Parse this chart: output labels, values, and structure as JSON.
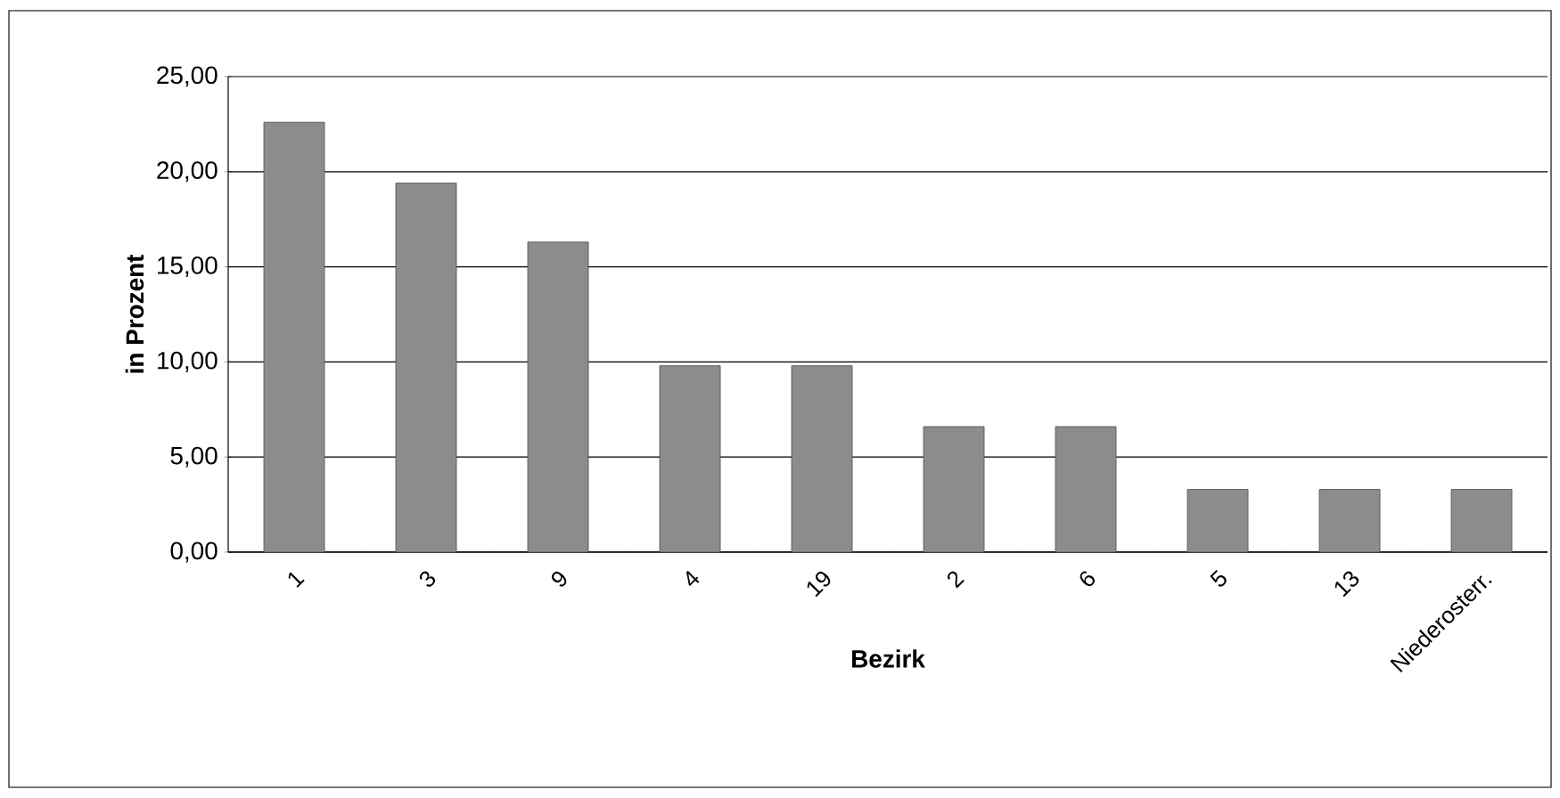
{
  "chart_data": {
    "type": "bar",
    "xlabel": "Bezirk",
    "ylabel": "in Prozent",
    "categories": [
      "1",
      "3",
      "9",
      "4",
      "19",
      "2",
      "6",
      "5",
      "13",
      "Niederosterr."
    ],
    "values": [
      22.6,
      19.4,
      16.3,
      9.8,
      9.8,
      6.6,
      6.6,
      3.3,
      3.3,
      3.3
    ],
    "color": "#8c8c8c",
    "ylim": [
      0,
      25
    ],
    "yticks": [
      {
        "value": 0,
        "label": "0,00"
      },
      {
        "value": 5,
        "label": "5,00"
      },
      {
        "value": 10,
        "label": "10,00"
      },
      {
        "value": 15,
        "label": "15,00"
      },
      {
        "value": 20,
        "label": "20,00"
      },
      {
        "value": 25,
        "label": "25,00"
      }
    ],
    "grid": "y"
  }
}
